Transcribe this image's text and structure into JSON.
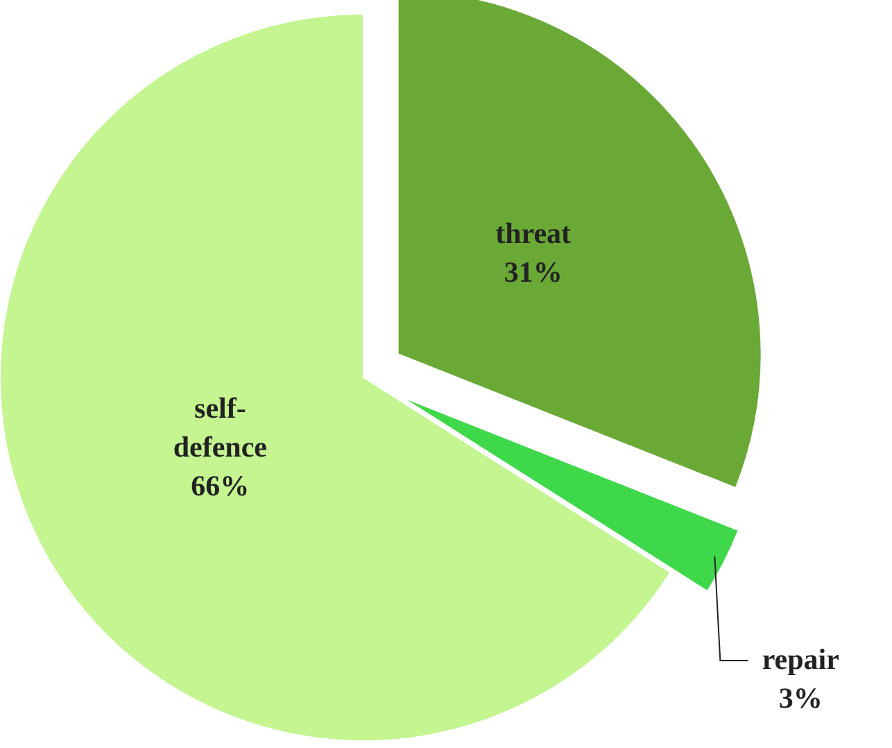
{
  "chart_data": {
    "type": "pie",
    "categories": [
      "threat",
      "repair",
      "self-defence"
    ],
    "values": [
      31,
      3,
      66
    ],
    "colors": [
      "#6aa936",
      "#3ed84a",
      "#c4f590"
    ],
    "value_labels": [
      "31%",
      "3%",
      "66%"
    ]
  }
}
